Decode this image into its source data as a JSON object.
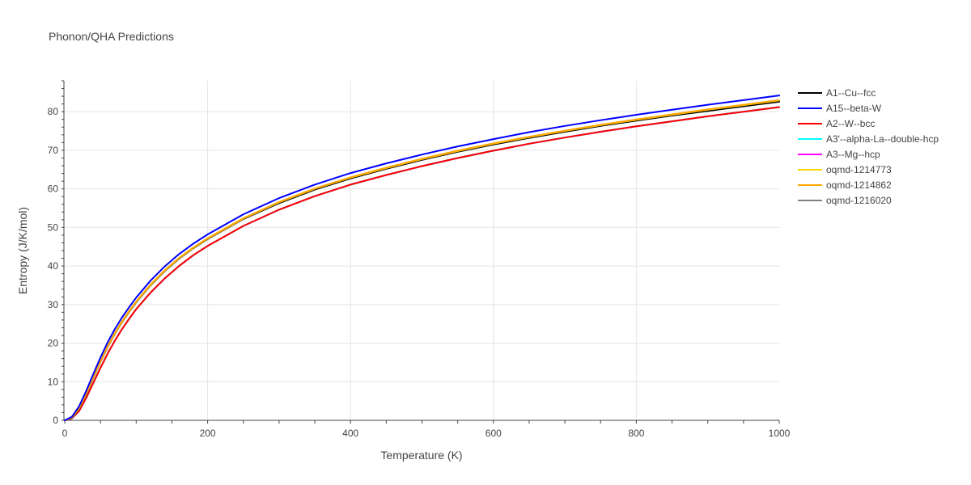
{
  "chart_data": {
    "type": "line",
    "title": "Phonon/QHA Predictions",
    "xlabel": "Temperature (K)",
    "ylabel": "Entropy (J/K/mol)",
    "xlim": [
      0,
      1000
    ],
    "ylim": [
      0,
      88
    ],
    "x_ticks": [
      0,
      200,
      400,
      600,
      800,
      1000
    ],
    "y_ticks": [
      0,
      10,
      20,
      30,
      40,
      50,
      60,
      70,
      80
    ],
    "grid": true,
    "legend_position": "right",
    "x": [
      0,
      10,
      20,
      30,
      40,
      50,
      60,
      70,
      80,
      90,
      100,
      120,
      140,
      160,
      180,
      200,
      250,
      300,
      350,
      400,
      450,
      500,
      550,
      600,
      650,
      700,
      750,
      800,
      850,
      900,
      950,
      1000
    ],
    "series": [
      {
        "name": "A1--Cu--fcc",
        "color": "#000000",
        "values": [
          0,
          0.6,
          3.0,
          6.8,
          11.0,
          15.2,
          19.0,
          22.4,
          25.4,
          28.1,
          30.6,
          35.0,
          38.7,
          41.9,
          44.6,
          47.0,
          52.2,
          56.3,
          59.8,
          62.7,
          65.2,
          67.5,
          69.6,
          71.5,
          73.2,
          74.8,
          76.3,
          77.7,
          79.0,
          80.2,
          81.4,
          82.6
        ]
      },
      {
        "name": "A15--beta-W",
        "color": "#0000ff",
        "values": [
          0,
          0.9,
          3.6,
          7.6,
          12.0,
          16.3,
          20.2,
          23.6,
          26.6,
          29.3,
          31.8,
          36.2,
          39.9,
          43.1,
          45.8,
          48.2,
          53.4,
          57.6,
          61.1,
          64.1,
          66.6,
          68.9,
          71.0,
          72.9,
          74.7,
          76.3,
          77.8,
          79.2,
          80.5,
          81.8,
          83.0,
          84.2
        ]
      },
      {
        "name": "A2--W--bcc",
        "color": "#ff0000",
        "values": [
          0,
          0.5,
          2.4,
          5.8,
          9.7,
          13.6,
          17.3,
          20.6,
          23.6,
          26.3,
          28.8,
          33.1,
          36.8,
          40.0,
          42.8,
          45.2,
          50.4,
          54.6,
          58.1,
          61.1,
          63.6,
          65.9,
          68.0,
          69.9,
          71.7,
          73.3,
          74.8,
          76.2,
          77.5,
          78.8,
          80.0,
          81.2
        ]
      },
      {
        "name": "A3'--alpha-La--double-hcp",
        "color": "#00ffff",
        "values": [
          0,
          0.5,
          2.4,
          5.8,
          9.7,
          13.6,
          17.3,
          20.6,
          23.6,
          26.3,
          28.8,
          33.1,
          36.8,
          40.0,
          42.8,
          45.2,
          50.4,
          54.6,
          58.1,
          61.1,
          63.6,
          65.9,
          68.0,
          69.9,
          71.7,
          73.3,
          74.8,
          76.2,
          77.5,
          78.8,
          80.0,
          81.2
        ]
      },
      {
        "name": "A3--Mg--hcp",
        "color": "#ff00ff",
        "values": [
          0,
          0.5,
          2.4,
          5.8,
          9.7,
          13.6,
          17.3,
          20.6,
          23.6,
          26.3,
          28.8,
          33.1,
          36.8,
          40.0,
          42.8,
          45.2,
          50.4,
          54.6,
          58.1,
          61.1,
          63.6,
          65.9,
          68.0,
          69.9,
          71.7,
          73.3,
          74.8,
          76.2,
          77.5,
          78.8,
          80.0,
          81.2
        ]
      },
      {
        "name": "oqmd-1214773",
        "color": "#ffd700",
        "values": [
          0,
          0.7,
          3.1,
          6.9,
          11.1,
          15.3,
          19.1,
          22.5,
          25.5,
          28.2,
          30.7,
          35.1,
          38.8,
          42.0,
          44.7,
          47.1,
          52.3,
          56.5,
          60.0,
          62.9,
          65.4,
          67.7,
          69.8,
          71.7,
          73.4,
          75.0,
          76.5,
          77.9,
          79.2,
          80.5,
          81.7,
          82.9
        ]
      },
      {
        "name": "oqmd-1214862",
        "color": "#ffa500",
        "values": [
          0,
          0.7,
          3.2,
          7.0,
          11.2,
          15.4,
          19.2,
          22.6,
          25.6,
          28.3,
          30.8,
          35.2,
          38.9,
          42.1,
          44.8,
          47.2,
          52.4,
          56.6,
          60.1,
          63.0,
          65.5,
          67.8,
          69.9,
          71.8,
          73.5,
          75.1,
          76.6,
          78.0,
          79.3,
          80.6,
          81.8,
          83.0
        ]
      },
      {
        "name": "oqmd-1216020",
        "color": "#808080",
        "values": [
          0,
          0.5,
          2.4,
          5.8,
          9.7,
          13.6,
          17.3,
          20.6,
          23.6,
          26.3,
          28.8,
          33.1,
          36.8,
          40.0,
          42.8,
          45.2,
          50.4,
          54.6,
          58.1,
          61.1,
          63.6,
          65.9,
          68.0,
          69.9,
          71.7,
          73.3,
          74.8,
          76.2,
          77.5,
          78.8,
          80.0,
          81.2
        ]
      }
    ]
  }
}
